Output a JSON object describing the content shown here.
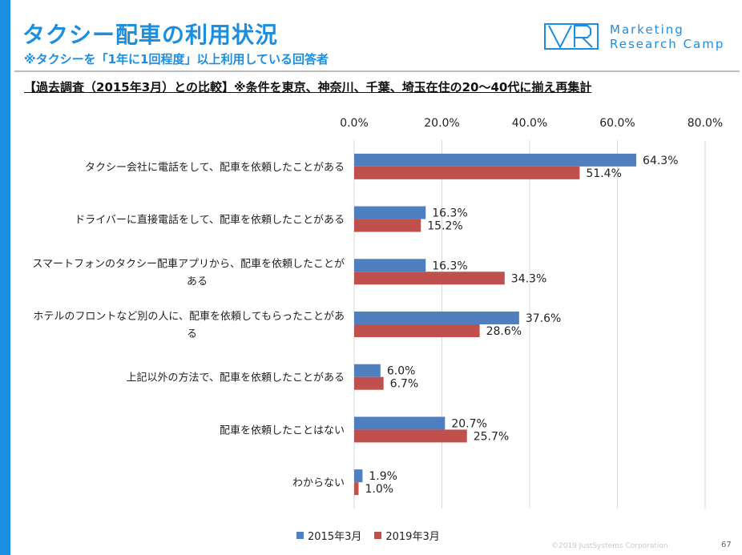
{
  "header": {
    "title": "タクシー配車の利用状況",
    "subtitle": "※タクシーを「1年に1回程度」以上利用している回答者",
    "heading": "【過去調査（2015年3月）との比較】※条件を東京、神奈川、千葉、埼玉在住の20～40代に揃え再集計"
  },
  "logo": {
    "line1": "Marketing",
    "line2": "Research Camp",
    "mark_icon": "vr-logo-icon"
  },
  "footer": {
    "copyright": "©2019 JustSystems Corporation",
    "page": "67"
  },
  "colors": {
    "accent": "#1b8ee0",
    "series_2015": "#4f7fbf",
    "series_2019": "#c0504d"
  },
  "chart_data": {
    "type": "bar",
    "orientation": "horizontal",
    "categories": [
      [
        "タクシー会社に電話をして、配車を依頼したことがある"
      ],
      [
        "ドライバーに直接電話をして、配車を依頼したことがある"
      ],
      [
        "スマートフォンのタクシー配車アプリから、配車を依頼したことが",
        "ある"
      ],
      [
        "ホテルのフロントなど別の人に、配車を依頼してもらったことがあ",
        "る"
      ],
      [
        "上記以外の方法で、配車を依頼したことがある"
      ],
      [
        "配車を依頼したことはない"
      ],
      [
        "わからない"
      ]
    ],
    "series": [
      {
        "name": "2015年3月",
        "color": "#4f7fbf",
        "values": [
          64.3,
          16.3,
          16.3,
          37.6,
          6.0,
          20.7,
          1.9
        ]
      },
      {
        "name": "2019年3月",
        "color": "#c0504d",
        "values": [
          51.4,
          15.2,
          34.3,
          28.6,
          6.7,
          25.7,
          1.0
        ]
      }
    ],
    "xlim": [
      0,
      80
    ],
    "ticks": [
      0,
      20,
      40,
      60,
      80
    ],
    "tick_labels": [
      "0.0%",
      "20.0%",
      "40.0%",
      "60.0%",
      "80.0%"
    ],
    "value_suffix": "%",
    "grid": true,
    "legend_position": "bottom"
  }
}
